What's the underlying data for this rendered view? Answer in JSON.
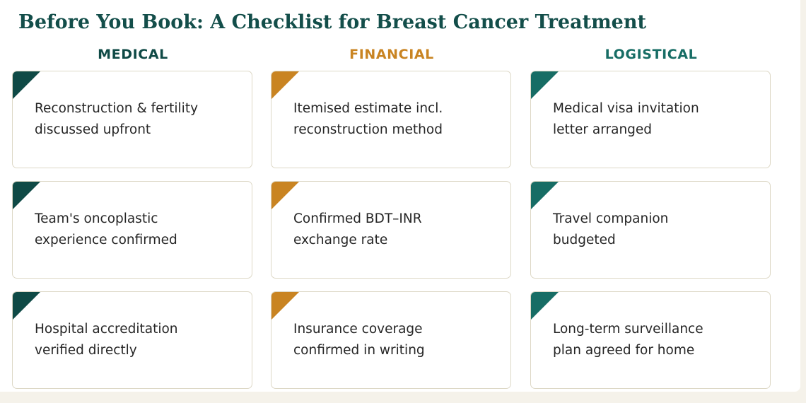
{
  "title": "Before You Book: A Checklist for Breast Cancer Treatment",
  "colors": {
    "medical": "#0f4a46",
    "financial": "#c98422",
    "logistical": "#176d65",
    "title": "#134e4a",
    "card_border": "#ddd8c6"
  },
  "columns": [
    {
      "header": "MEDICAL",
      "items": [
        {
          "line1": "Reconstruction & fertility",
          "line2": "discussed upfront"
        },
        {
          "line1": "Team's oncoplastic",
          "line2": "experience confirmed"
        },
        {
          "line1": "Hospital accreditation",
          "line2": "verified directly"
        }
      ]
    },
    {
      "header": "FINANCIAL",
      "items": [
        {
          "line1": "Itemised estimate incl.",
          "line2": "reconstruction method"
        },
        {
          "line1": "Confirmed BDT–INR",
          "line2": "exchange rate"
        },
        {
          "line1": "Insurance coverage",
          "line2": "confirmed in writing"
        }
      ]
    },
    {
      "header": "LOGISTICAL",
      "items": [
        {
          "line1": "Medical visa invitation",
          "line2": "letter arranged"
        },
        {
          "line1": "Travel companion",
          "line2": "budgeted"
        },
        {
          "line1": "Long-term surveillance",
          "line2": "plan agreed for home"
        }
      ]
    }
  ]
}
